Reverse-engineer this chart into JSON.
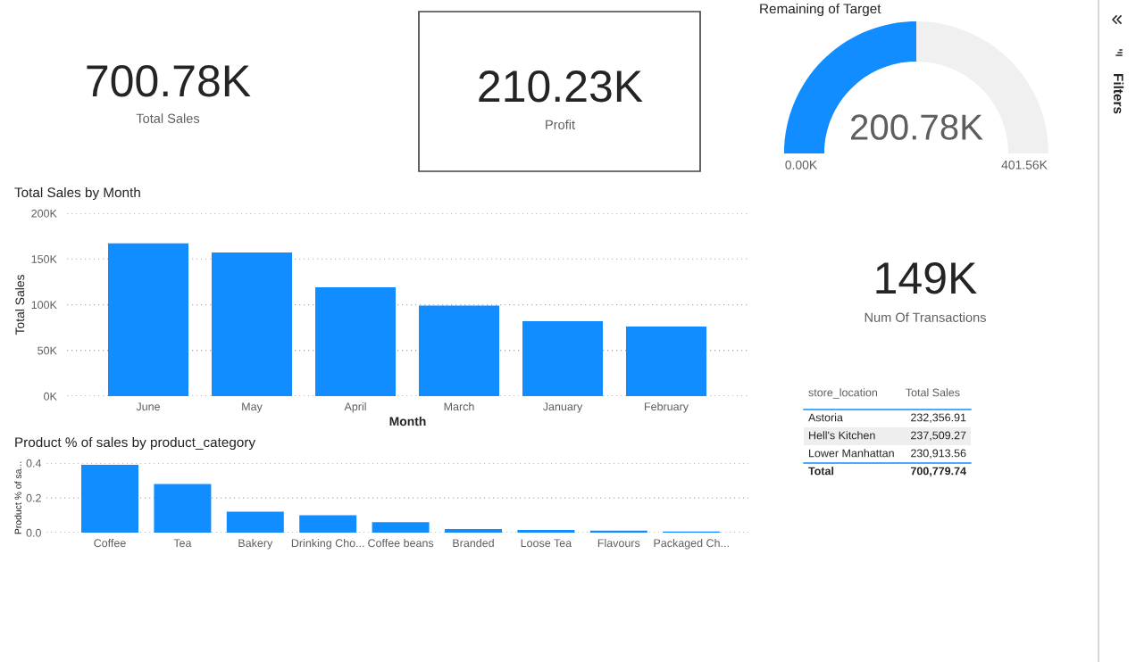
{
  "chart_data": [
    {
      "type": "other",
      "annotations": [
        "700.78K",
        "Total Sales"
      ]
    },
    {
      "type": "other",
      "annotations": [
        "210.23K",
        "Profit"
      ]
    },
    {
      "type": "donut",
      "title": "Remaining of Target",
      "categories": [
        null,
        null
      ],
      "values": [
        50,
        50
      ],
      "colors": [
        "#118dff",
        "#f0f0f0"
      ],
      "annotations": [
        "200.78K",
        "0.00K",
        "401.56K"
      ]
    },
    {
      "type": "bar",
      "title": "Total Sales by Month",
      "xlabel": "Month",
      "ylabel": "Total Sales",
      "categories": [
        "June",
        "May",
        "April",
        "March",
        "January",
        "February"
      ],
      "values": [
        167000,
        157000,
        119000,
        99000,
        82000,
        76000
      ],
      "color": "#118dff",
      "ylim": [
        0,
        200000
      ],
      "yticks": [
        {
          "value": 0,
          "label": "0K"
        },
        {
          "value": 50000,
          "label": "50K"
        },
        {
          "value": 100000,
          "label": "100K"
        },
        {
          "value": 150000,
          "label": "150K"
        },
        {
          "value": 200000,
          "label": "200K"
        }
      ],
      "grid": "y"
    },
    {
      "type": "other",
      "annotations": [
        "149K",
        "Num Of Transactions"
      ]
    },
    {
      "type": "other",
      "annotations": [
        "store_location",
        "Total Sales",
        "Astoria",
        "232,356.91",
        "Hell's Kitchen",
        "237,509.27",
        "Lower Manhattan",
        "230,913.56",
        "Total",
        "700,779.74"
      ]
    },
    {
      "type": "bar",
      "title": "Product % of sales by product_category",
      "ylabel": "Product % of sa...",
      "categories": [
        "Coffee",
        "Tea",
        "Bakery",
        "Drinking Cho...",
        "Coffee beans",
        "Branded",
        "Loose Tea",
        "Flavours",
        "Packaged Ch..."
      ],
      "values": [
        0.39,
        0.28,
        0.12,
        0.1,
        0.06,
        0.02,
        0.016,
        0.012,
        0.006
      ],
      "color": "#118dff",
      "ylim": [
        0,
        0.4
      ],
      "yticks": [
        {
          "value": 0,
          "label": "0.0"
        },
        0.2,
        0.4
      ],
      "grid": "y"
    },
    {
      "type": "other",
      "annotations": [
        "Filters"
      ]
    }
  ]
}
